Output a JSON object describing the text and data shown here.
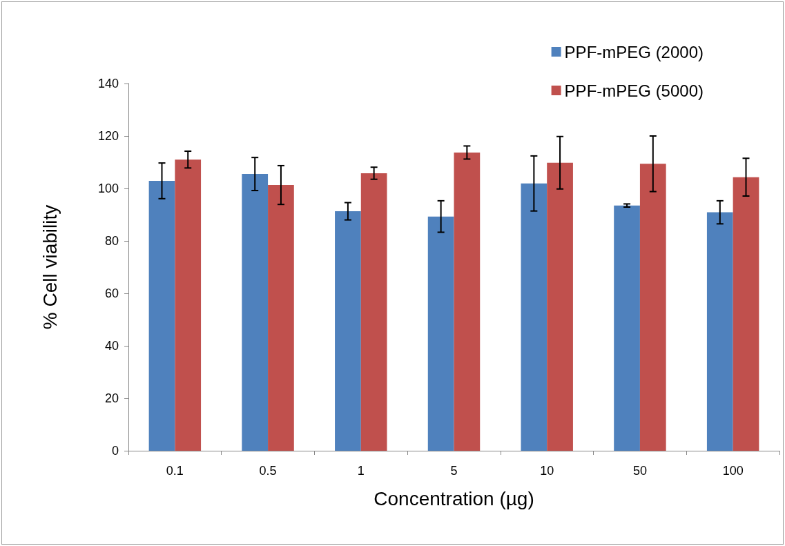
{
  "chart_data": {
    "type": "bar",
    "xlabel": "Concentration (µg)",
    "ylabel": "% Cell viability",
    "categories": [
      "0.1",
      "0.5",
      "1",
      "5",
      "10",
      "50",
      "100"
    ],
    "series": [
      {
        "name": "PPF-mPEG (2000)",
        "color": "#4f81bd",
        "values": [
          102.9,
          105.5,
          91.3,
          89.3,
          101.9,
          93.5,
          90.9
        ],
        "errors": [
          6.8,
          6.3,
          3.3,
          6,
          10.5,
          0.6,
          4.4
        ]
      },
      {
        "name": "PPF-mPEG (5000)",
        "color": "#c0504d",
        "values": [
          111,
          101.3,
          105.8,
          113.7,
          109.8,
          109.4,
          104.3
        ],
        "errors": [
          3.2,
          7.4,
          2.3,
          2.5,
          10,
          10.6,
          7.2
        ]
      }
    ],
    "ylim": [
      0,
      140
    ],
    "yticks": [
      0,
      20,
      40,
      60,
      80,
      100,
      120,
      140
    ],
    "grid": false,
    "legend": "top right"
  }
}
